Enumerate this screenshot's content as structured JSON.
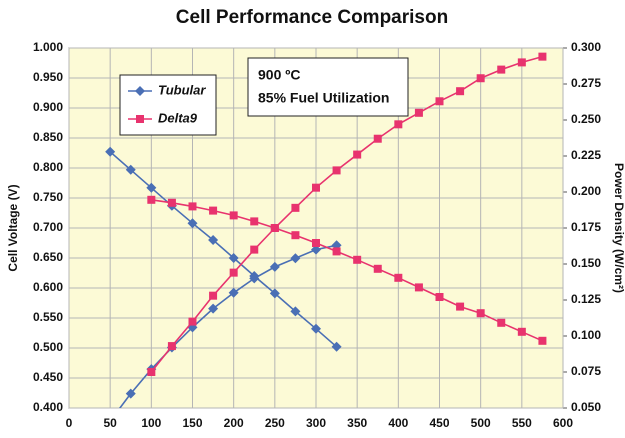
{
  "chart_data": {
    "type": "line",
    "title": "Cell Performance Comparison",
    "y_label": "Cell Voltage (V)",
    "y2_label": "Power Density (W/cm²)",
    "annotations": [
      "900 ºC",
      "85% Fuel Utilization"
    ],
    "xlim": [
      0,
      600
    ],
    "xticks": [
      0,
      50,
      100,
      150,
      200,
      250,
      300,
      350,
      400,
      450,
      500,
      550,
      600
    ],
    "ylim": [
      0.4,
      1.0
    ],
    "yticks": [
      {
        "value": 0.4,
        "label": "0.400"
      },
      {
        "value": 0.45,
        "label": "0.450"
      },
      {
        "value": 0.5,
        "label": "0.500"
      },
      {
        "value": 0.55,
        "label": "0.550"
      },
      {
        "value": 0.6,
        "label": "0.600"
      },
      {
        "value": 0.65,
        "label": "0.650"
      },
      {
        "value": 0.7,
        "label": "0.700"
      },
      {
        "value": 0.75,
        "label": "0.750"
      },
      {
        "value": 0.8,
        "label": "0.800"
      },
      {
        "value": 0.85,
        "label": "0.850"
      },
      {
        "value": 0.9,
        "label": "0.900"
      },
      {
        "value": 0.95,
        "label": "0.950"
      },
      {
        "value": 1.0,
        "label": "1.000"
      }
    ],
    "y2lim": [
      0.05,
      0.3
    ],
    "y2ticks": [
      {
        "value": 0.05,
        "label": "0.050"
      },
      {
        "value": 0.075,
        "label": "0.075"
      },
      {
        "value": 0.1,
        "label": "0.100"
      },
      {
        "value": 0.125,
        "label": "0.125"
      },
      {
        "value": 0.15,
        "label": "0.150"
      },
      {
        "value": 0.175,
        "label": "0.175"
      },
      {
        "value": 0.2,
        "label": "0.200"
      },
      {
        "value": 0.225,
        "label": "0.225"
      },
      {
        "value": 0.25,
        "label": "0.250"
      },
      {
        "value": 0.275,
        "label": "0.275"
      },
      {
        "value": 0.3,
        "label": "0.300"
      }
    ],
    "grid": true,
    "series": [
      {
        "name": "Tubular",
        "color": "#4a6fb5",
        "marker": "diamond",
        "x": [
          50,
          75,
          100,
          125,
          150,
          175,
          200,
          225,
          250,
          275,
          300,
          325
        ],
        "values": [
          0.827,
          0.797,
          0.767,
          0.737,
          0.708,
          0.68,
          0.65,
          0.62,
          0.591,
          0.561,
          0.532,
          0.502
        ],
        "power": [
          0.041,
          0.06,
          0.077,
          0.092,
          0.106,
          0.119,
          0.13,
          0.14,
          0.148,
          0.154,
          0.16,
          0.163
        ]
      },
      {
        "name": "Delta9",
        "color": "#e8336e",
        "marker": "square",
        "x": [
          100,
          125,
          150,
          175,
          200,
          225,
          250,
          275,
          300,
          325,
          350,
          375,
          400,
          425,
          450,
          475,
          500,
          525,
          550,
          575
        ],
        "values": [
          0.747,
          0.742,
          0.736,
          0.729,
          0.721,
          0.711,
          0.7,
          0.688,
          0.675,
          0.661,
          0.647,
          0.632,
          0.617,
          0.601,
          0.585,
          0.569,
          0.558,
          0.542,
          0.527,
          0.512
        ],
        "power": [
          0.075,
          0.093,
          0.11,
          0.128,
          0.144,
          0.16,
          0.175,
          0.189,
          0.203,
          0.215,
          0.226,
          0.237,
          0.247,
          0.255,
          0.263,
          0.27,
          0.279,
          0.285,
          0.29,
          0.294
        ]
      }
    ]
  }
}
